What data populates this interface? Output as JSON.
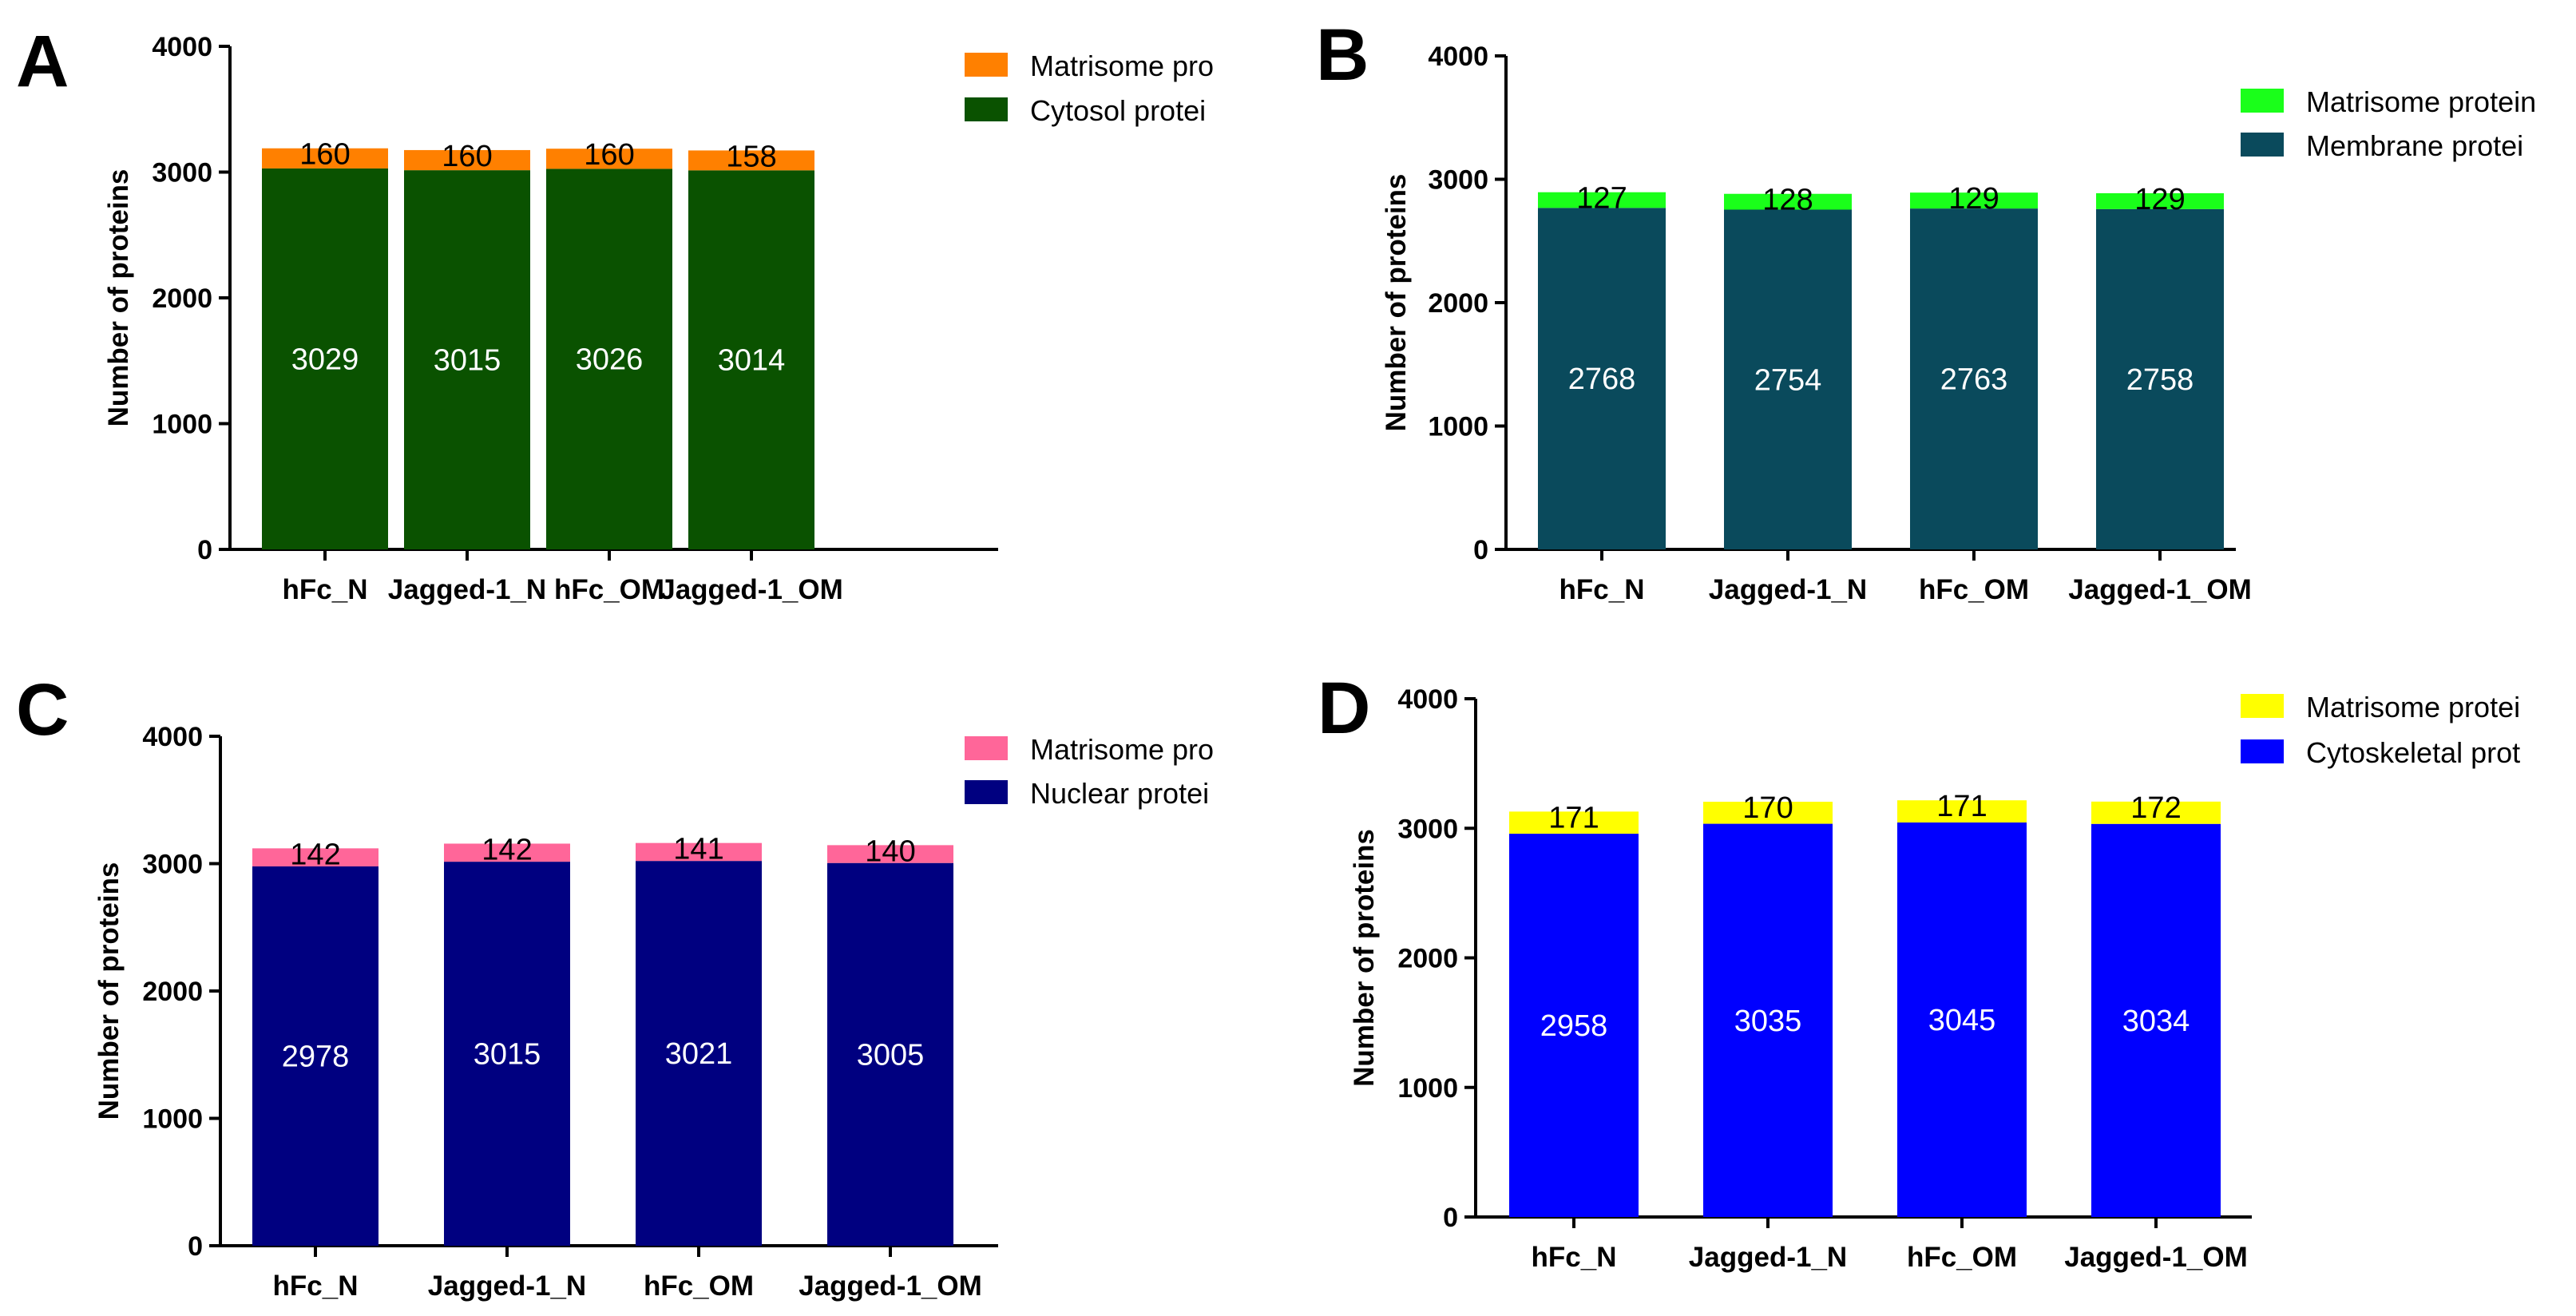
{
  "chart_data": [
    {
      "panel": "A",
      "type": "stacked-bar",
      "ylabel": "Number of proteins",
      "ylim": [
        0,
        4000
      ],
      "yticks": [
        "0",
        "1000",
        "2000",
        "3000",
        "4000"
      ],
      "categories": [
        "hFc_N",
        "Jagged-1_N",
        "hFc_OM",
        "Jagged-1_OM"
      ],
      "series": [
        {
          "name": "Cytosol protei",
          "color": "#0a5200",
          "values": [
            3029,
            3015,
            3026,
            3014
          ],
          "labels": [
            "3029",
            "3015",
            "3026",
            "3014"
          ]
        },
        {
          "name": "Matrisome pro",
          "color": "#ff8000",
          "values": [
            160,
            160,
            160,
            158
          ],
          "labels": [
            "160",
            "160",
            "160",
            "158"
          ]
        }
      ]
    },
    {
      "panel": "B",
      "type": "stacked-bar",
      "ylabel": "Number of proteins",
      "ylim": [
        0,
        4000
      ],
      "yticks": [
        "0",
        "1000",
        "2000",
        "3000",
        "4000"
      ],
      "categories": [
        "hFc_N",
        "Jagged-1_N",
        "hFc_OM",
        "Jagged-1_OM"
      ],
      "series": [
        {
          "name": "Membrane protei",
          "color": "#0a4a5c",
          "values": [
            2768,
            2754,
            2763,
            2758
          ],
          "labels": [
            "2768",
            "2754",
            "2763",
            "2758"
          ]
        },
        {
          "name": "Matrisome protein",
          "color": "#1aff1a",
          "values": [
            127,
            128,
            129,
            129
          ],
          "labels": [
            "127",
            "128",
            "129",
            "129"
          ]
        }
      ]
    },
    {
      "panel": "C",
      "type": "stacked-bar",
      "ylabel": "Number of proteins",
      "ylim": [
        0,
        4000
      ],
      "yticks": [
        "0",
        "1000",
        "2000",
        "3000",
        "4000"
      ],
      "categories": [
        "hFc_N",
        "Jagged-1_N",
        "hFc_OM",
        "Jagged-1_OM"
      ],
      "series": [
        {
          "name": "Nuclear protei",
          "color": "#000080",
          "values": [
            2978,
            3015,
            3021,
            3005
          ],
          "labels": [
            "2978",
            "3015",
            "3021",
            "3005"
          ]
        },
        {
          "name": "Matrisome pro",
          "color": "#ff6699",
          "values": [
            142,
            142,
            141,
            140
          ],
          "labels": [
            "142",
            "142",
            "141",
            "140"
          ]
        }
      ]
    },
    {
      "panel": "D",
      "type": "stacked-bar",
      "ylabel": "Number of proteins",
      "ylim": [
        0,
        4000
      ],
      "yticks": [
        "0",
        "1000",
        "2000",
        "3000",
        "4000"
      ],
      "categories": [
        "hFc_N",
        "Jagged-1_N",
        "hFc_OM",
        "Jagged-1_OM"
      ],
      "series": [
        {
          "name": "Cytoskeletal prot",
          "color": "#0000ff",
          "values": [
            2958,
            3035,
            3045,
            3034
          ],
          "labels": [
            "2958",
            "3035",
            "3045",
            "3034"
          ]
        },
        {
          "name": "Matrisome protei",
          "color": "#ffff00",
          "values": [
            171,
            170,
            171,
            172
          ],
          "labels": [
            "171",
            "170",
            "171",
            "172"
          ]
        }
      ]
    }
  ]
}
